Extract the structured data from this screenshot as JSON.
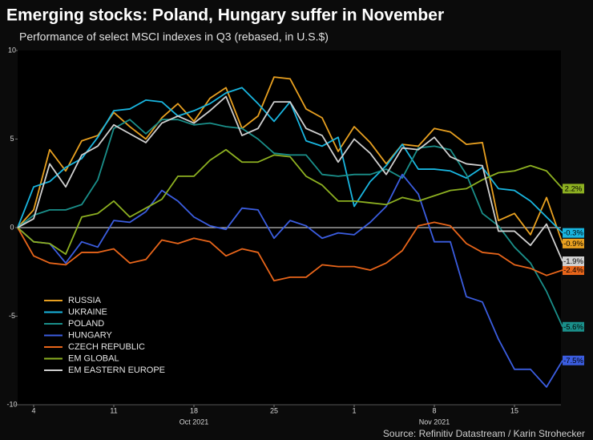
{
  "chart_data": {
    "type": "line",
    "title": "Emerging stocks: Poland, Hungary suffer in November",
    "subtitle": "Performance of select MSCI indexes in Q3 (rebased, in U.S.$)",
    "source": "Source: Refinitiv Datastream / Karin Strohecker",
    "categories": [
      null,
      "4",
      null,
      null,
      null,
      null,
      "11",
      null,
      null,
      null,
      null,
      "18",
      null,
      null,
      null,
      null,
      "25",
      null,
      null,
      null,
      null,
      "1",
      null,
      null,
      null,
      null,
      "8",
      null,
      null,
      null,
      null,
      "15",
      null,
      null,
      null
    ],
    "x_group_labels": [
      "Oct 2021",
      "Nov 2021"
    ],
    "ylim": [
      -10,
      10
    ],
    "yticks": [
      -10,
      -5,
      0,
      5,
      10
    ],
    "grid": false,
    "legend": "lower left",
    "series": [
      {
        "name": "RUSSIA",
        "color": "#e8a020",
        "end_label": "-0.9%",
        "values": [
          0,
          1.0,
          4.4,
          3.2,
          4.9,
          5.2,
          6.5,
          5.7,
          5.0,
          6.2,
          7.0,
          6.0,
          7.3,
          7.9,
          5.6,
          6.3,
          8.5,
          8.4,
          6.7,
          6.2,
          4.3,
          5.7,
          4.8,
          3.6,
          4.7,
          4.6,
          5.6,
          5.4,
          4.7,
          4.8,
          0.4,
          0.8,
          -0.4,
          1.7,
          -0.9
        ]
      },
      {
        "name": "UKRAINE",
        "color": "#19b6e0",
        "end_label": "-0.3%",
        "values": [
          0,
          2.3,
          2.6,
          3.4,
          3.9,
          5.1,
          6.6,
          6.7,
          7.2,
          7.1,
          6.3,
          6.6,
          7.0,
          7.6,
          7.9,
          7.0,
          6.0,
          7.1,
          4.9,
          4.6,
          5.1,
          1.2,
          2.6,
          3.5,
          4.7,
          3.3,
          3.3,
          3.2,
          2.8,
          3.4,
          2.2,
          2.1,
          1.5,
          0.6,
          -0.3
        ]
      },
      {
        "name": "POLAND",
        "color": "#1a8f8a",
        "end_label": "-5.6%",
        "values": [
          0,
          0.7,
          1.0,
          1.0,
          1.3,
          2.7,
          5.6,
          6.1,
          5.3,
          6.1,
          6.1,
          5.8,
          5.9,
          5.7,
          5.6,
          5.0,
          4.2,
          4.1,
          4.1,
          3.0,
          2.9,
          3.0,
          3.0,
          3.3,
          2.8,
          4.5,
          4.6,
          4.4,
          3.0,
          0.8,
          0.1,
          -1.1,
          -2.0,
          -3.6,
          -5.6
        ]
      },
      {
        "name": "HUNGARY",
        "color": "#3b5de0",
        "end_label": "-7.5%",
        "values": [
          0,
          -0.8,
          -0.9,
          -2.0,
          -0.8,
          -1.1,
          0.4,
          0.3,
          0.9,
          2.1,
          1.5,
          0.6,
          0.1,
          -0.1,
          1.1,
          1.0,
          -0.6,
          0.4,
          0.1,
          -0.6,
          -0.3,
          -0.4,
          0.3,
          1.2,
          3.0,
          1.9,
          -0.8,
          -0.8,
          -3.9,
          -4.2,
          -6.3,
          -8.0,
          -8.0,
          -9.0,
          -7.5
        ]
      },
      {
        "name": "CZECH REPUBLIC",
        "color": "#e8651a",
        "end_label": "-2.4%",
        "values": [
          0,
          -1.6,
          -2.0,
          -2.1,
          -1.4,
          -1.4,
          -1.2,
          -2.0,
          -1.8,
          -0.7,
          -0.9,
          -0.6,
          -0.8,
          -1.6,
          -1.2,
          -1.4,
          -3.0,
          -2.8,
          -2.8,
          -2.1,
          -2.2,
          -2.2,
          -2.4,
          -2.0,
          -1.3,
          0.1,
          0.3,
          0.1,
          -0.9,
          -1.4,
          -1.5,
          -2.1,
          -2.3,
          -2.7,
          -2.4
        ]
      },
      {
        "name": "EM GLOBAL",
        "color": "#8db021",
        "end_label": "2.2%",
        "values": [
          0,
          -0.8,
          -0.9,
          -1.5,
          0.6,
          0.8,
          1.5,
          0.6,
          1.1,
          1.6,
          2.9,
          2.9,
          3.8,
          4.4,
          3.7,
          3.7,
          4.1,
          4.0,
          2.9,
          2.4,
          1.5,
          1.5,
          1.4,
          1.3,
          1.7,
          1.5,
          1.8,
          2.1,
          2.2,
          2.7,
          3.1,
          3.2,
          3.5,
          3.2,
          2.2
        ]
      },
      {
        "name": "EM EASTERN EUROPE",
        "color": "#d0d0d0",
        "end_label": "-1.9%",
        "values": [
          0,
          0.5,
          3.6,
          2.3,
          4.1,
          4.6,
          5.8,
          5.3,
          4.8,
          5.9,
          6.3,
          5.9,
          6.6,
          7.4,
          5.2,
          5.6,
          7.1,
          7.1,
          5.6,
          5.2,
          3.7,
          5.0,
          4.2,
          3.0,
          4.5,
          4.4,
          5.1,
          4.0,
          3.6,
          3.5,
          -0.2,
          -0.2,
          -1.0,
          0.2,
          -1.9
        ]
      }
    ]
  }
}
